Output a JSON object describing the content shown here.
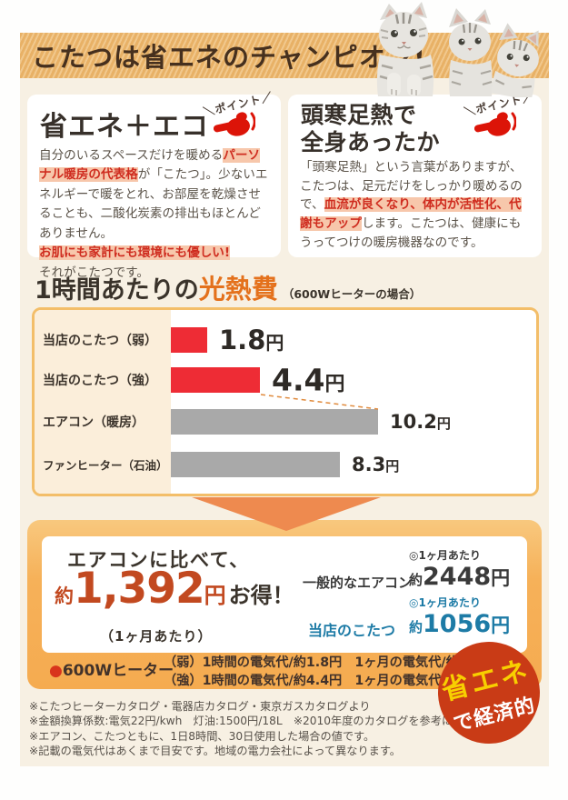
{
  "banner": {
    "title": "こたつは省エネのチャンピオン!"
  },
  "icons": {
    "kittens": "three-gray-tabby-kittens-photo",
    "pointing_hand": "red-pointing-hand-icon",
    "down_arrow": "orange-down-arrow",
    "badge_shape": "red-circle-sticker"
  },
  "point_mark": {
    "label": "＼ポイント／"
  },
  "cards": {
    "left": {
      "title": "省エネ＋エコ",
      "body_pre": "自分のいるスペースだけを暖める",
      "highlight1": "パーソナル暖房の代表格",
      "body_mid": "が「こたつ」。少ないエネルギーで暖をとれ、お部屋を乾燥させることも、二酸化炭素の排出もほとんどありません。",
      "highlight2": "お肌にも家計にも環境にも優しい!",
      "body_end": "それがこたつです。"
    },
    "right": {
      "title_line1": "頭寒足熱で",
      "title_line2": "全身あったか",
      "body_pre": "「頭寒足熱」という言葉がありますが、こたつは、足元だけをしっかり暖めるので、",
      "highlight": "血流が良くなり、体内が活性化、代謝もアップ",
      "body_end": "します。こたつは、健康にもうってつけの暖房機器なのです。"
    }
  },
  "chart_section": {
    "title_main": "1時間あたりの",
    "title_accent": "光熱費",
    "title_note": "（600Wヒーターの場合）"
  },
  "chart_data": {
    "type": "bar",
    "orientation": "horizontal",
    "title": "1時間あたりの光熱費（600Wヒーターの場合）",
    "categories": [
      "当店のこたつ（弱）",
      "当店のこたつ（強）",
      "エアコン（暖房）",
      "ファンヒーター（石油）"
    ],
    "values": [
      1.8,
      4.4,
      10.2,
      8.3
    ],
    "value_nums": [
      "1.8",
      "4.4",
      "10.2",
      "8.3"
    ],
    "unit": "円",
    "bar_colors": [
      "#ee2c35",
      "#ee2c35",
      "#a9a9a9",
      "#a9a9a9"
    ],
    "xlim": [
      0,
      10.2
    ],
    "grid": false,
    "legend": "none"
  },
  "savings": {
    "headline": "エアコンに比べて、",
    "approx": "約",
    "amount": "1,392",
    "amount_unit": "円",
    "suffix": "お得！",
    "per_month": "（1ヶ月あたり）",
    "rows": [
      {
        "label": "一般的なエアコン",
        "period": "◎1ヶ月あたり",
        "prefix": "約",
        "value": "2448",
        "unit": "円",
        "color": "#3a3a3a"
      },
      {
        "label": "当店のこたつ",
        "period": "◎1ヶ月あたり",
        "prefix": "約",
        "value": "1056",
        "unit": "円",
        "color": "#1d7ba6"
      }
    ],
    "heater": {
      "bullet": "●",
      "label": "600Wヒーター",
      "line1": "（弱）1時間の電気代/約1.8円　1ヶ月の電気代/約432円",
      "line2": "（強）1時間の電気代/約4.4円　1ヶ月の電気代/約1056円"
    }
  },
  "badge": {
    "line1": "省エネ",
    "line2": "で経済的"
  },
  "footnotes": [
    "※こたつヒーターカタログ・電器店カタログ・東京ガスカタログより",
    "※金額換算係数:電気22円/kwh　灯油:1500円/18L　※2010年度のカタログを参考にしています。",
    "※エアコン、こたつともに、1日8時間、30日使用した場合の値です。",
    "※記載の電気代はあくまで目安です。地域の電力会社によって異なります。"
  ],
  "colors": {
    "cream_bg": "#f7f0e3",
    "banner_stripe": "#e8b166",
    "accent_orange": "#e4711c",
    "bar_red": "#ee2c35",
    "bar_gray": "#a9a9a9",
    "savings_red": "#c24920",
    "kotatsu_blue": "#1d7ba6",
    "badge_red": "#c93b16",
    "badge_yellow": "#f8cf00",
    "highlight_bg": "#f7c7ab",
    "highlight_text": "#cf2c1f"
  }
}
